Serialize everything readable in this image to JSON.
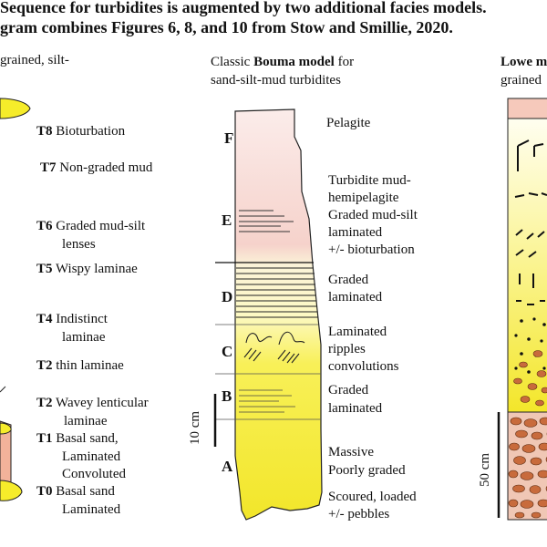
{
  "header": {
    "line1": "Sequence for turbidites is augmented by two additional facies models.",
    "line2": "gram combines Figures 6, 8, and 10 from Stow and Smillie, 2020."
  },
  "left_panel": {
    "title": "grained, silt-",
    "divisions": [
      {
        "code": "T8",
        "text": "Bioturbation"
      },
      {
        "code": "T7",
        "text": "Non-graded mud"
      },
      {
        "code": "T6",
        "text": "Graded mud-silt",
        "text2": "lenses"
      },
      {
        "code": "T5",
        "text": "Wispy laminae"
      },
      {
        "code": "T4",
        "text": "Indistinct",
        "text2": "laminae"
      },
      {
        "code": "T2",
        "text": "thin laminae"
      },
      {
        "code": "T2",
        "text": "Wavey lenticular",
        "text2": "laminae"
      },
      {
        "code": "T1",
        "text": "Basal sand,",
        "text2": "Laminated",
        "text3": "Convoluted"
      },
      {
        "code": "T0",
        "text": "Basal sand",
        "text2": "Laminated"
      }
    ]
  },
  "middle_panel": {
    "title_prefix": "Classic ",
    "title_bold": "Bouma model",
    "title_suffix": " for",
    "title_line2": "sand-silt-mud turbidites",
    "letters": [
      "F",
      "E",
      "D",
      "C",
      "B",
      "A"
    ],
    "scale_label": "10 cm",
    "descriptions": {
      "pelagite": "Pelagite",
      "e1": "Turbidite mud-",
      "e2": "hemipelagite",
      "e3": "Graded mud-silt",
      "e4": "laminated",
      "e5": "+/- bioturbation",
      "d1": "Graded",
      "d2": "laminated",
      "c1": "Laminated",
      "c2": "ripples",
      "c3": "convolutions",
      "b1": "Graded",
      "b2": "laminated",
      "a1": "Massive",
      "a2": "Poorly graded",
      "base1": "Scoured, loaded",
      "base2": "+/- pebbles"
    }
  },
  "right_panel": {
    "title1": "Lowe m",
    "title2": "grained",
    "scale_label": "50 cm"
  },
  "colors": {
    "mud_pink": "#f6d6cf",
    "yellow": "#f3ec2c",
    "pale_yellow": "#fbf7b6",
    "pebble_brown": "#c86b3c",
    "pebble_bed": "#f0c7b5",
    "salmon": "#f2b29a"
  }
}
